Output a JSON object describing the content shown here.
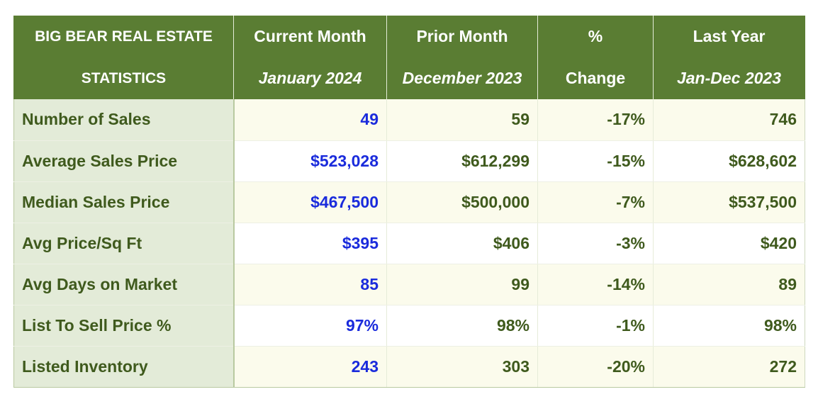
{
  "header": {
    "title_line1": "BIG BEAR REAL ESTATE",
    "title_line2": "STATISTICS",
    "current_label": "Current Month",
    "current_period": "January 2024",
    "prior_label": "Prior Month",
    "prior_period": "December 2023",
    "change_label_line1": "%",
    "change_label_line2": "Change",
    "lastyear_label": "Last Year",
    "lastyear_period": "Jan-Dec 2023"
  },
  "rows": [
    {
      "label": "Number of Sales",
      "current": "49",
      "prior": "59",
      "change": "-17%",
      "last_year": "746"
    },
    {
      "label": "Average Sales Price",
      "current": "$523,028",
      "prior": "$612,299",
      "change": "-15%",
      "last_year": "$628,602"
    },
    {
      "label": "Median Sales Price",
      "current": "$467,500",
      "prior": "$500,000",
      "change": "-7%",
      "last_year": "$537,500"
    },
    {
      "label": "Avg Price/Sq Ft",
      "current": "$395",
      "prior": "$406",
      "change": "-3%",
      "last_year": "$420"
    },
    {
      "label": "Avg Days on Market",
      "current": "85",
      "prior": "99",
      "change": "-14%",
      "last_year": "89"
    },
    {
      "label": "List To Sell Price %",
      "current": "97%",
      "prior": "98%",
      "change": "-1%",
      "last_year": "98%"
    },
    {
      "label": "Listed Inventory",
      "current": "243",
      "prior": "303",
      "change": "-20%",
      "last_year": "272"
    }
  ],
  "colors": {
    "header_bg": "#5a7d33",
    "header_text": "#ffffff",
    "label_bg": "#e3ebd8",
    "body_text": "#3f5a1d",
    "current_text": "#1a2bdc",
    "stripe_bg": "#fbfbec"
  }
}
